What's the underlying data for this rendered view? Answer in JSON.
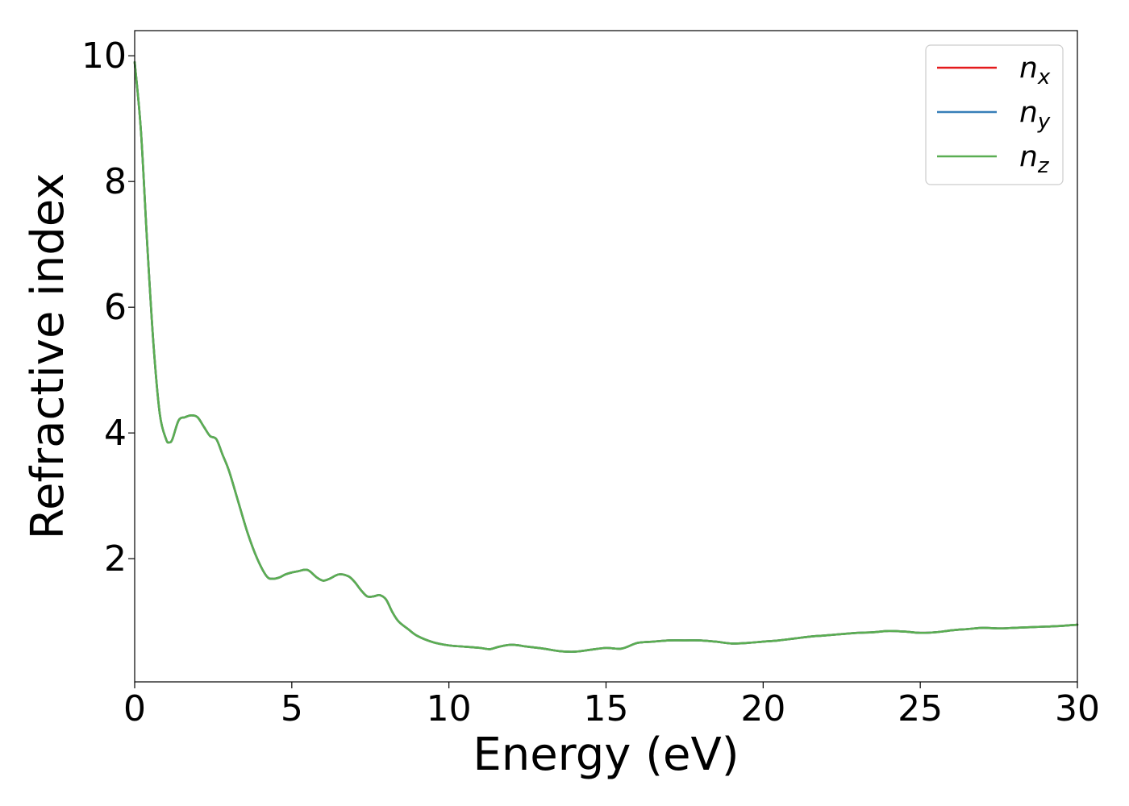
{
  "chart_data": {
    "type": "line",
    "xlabel": "Energy (eV)",
    "ylabel": "Refractive index",
    "xlim": [
      0,
      30
    ],
    "ylim": [
      0.04,
      10.4
    ],
    "xticks": [
      0,
      5,
      10,
      15,
      20,
      25,
      30
    ],
    "yticks": [
      2,
      4,
      6,
      8,
      10
    ],
    "grid": false,
    "legend_position": "top-right",
    "series": [
      {
        "name": "n_x",
        "label_base": "n",
        "label_sub": "x",
        "color": "#e41a1c",
        "x": [
          0,
          0.2,
          0.4,
          0.6,
          0.8,
          1.0,
          1.1,
          1.2,
          1.4,
          1.6,
          1.8,
          2.0,
          2.2,
          2.4,
          2.6,
          2.8,
          3.0,
          3.3,
          3.6,
          3.9,
          4.2,
          4.4,
          4.6,
          4.8,
          5.0,
          5.2,
          5.5,
          5.8,
          6.0,
          6.2,
          6.5,
          6.8,
          7.0,
          7.2,
          7.4,
          7.6,
          7.8,
          8.0,
          8.2,
          8.4,
          8.7,
          9.0,
          9.5,
          10.0,
          10.5,
          11.0,
          11.3,
          11.6,
          12.0,
          12.5,
          13.0,
          13.5,
          14.0,
          14.5,
          15.0,
          15.5,
          16.0,
          16.5,
          17.0,
          17.5,
          18.0,
          18.5,
          19.0,
          19.5,
          20.0,
          20.5,
          21.0,
          21.5,
          22.0,
          22.5,
          23.0,
          23.5,
          24.0,
          24.5,
          25.0,
          25.5,
          26.0,
          26.5,
          27.0,
          27.5,
          28.0,
          28.5,
          29.0,
          29.5,
          30.0
        ],
        "y": [
          9.9,
          8.8,
          7.0,
          5.4,
          4.3,
          3.9,
          3.85,
          3.9,
          4.2,
          4.25,
          4.28,
          4.25,
          4.1,
          3.95,
          3.9,
          3.65,
          3.4,
          2.9,
          2.4,
          2.0,
          1.72,
          1.68,
          1.7,
          1.75,
          1.78,
          1.8,
          1.82,
          1.7,
          1.65,
          1.68,
          1.75,
          1.72,
          1.63,
          1.5,
          1.4,
          1.4,
          1.42,
          1.35,
          1.15,
          1.0,
          0.88,
          0.77,
          0.67,
          0.62,
          0.6,
          0.58,
          0.56,
          0.6,
          0.63,
          0.6,
          0.57,
          0.53,
          0.52,
          0.55,
          0.58,
          0.57,
          0.66,
          0.68,
          0.7,
          0.7,
          0.7,
          0.68,
          0.65,
          0.66,
          0.68,
          0.7,
          0.73,
          0.76,
          0.78,
          0.8,
          0.82,
          0.83,
          0.85,
          0.84,
          0.82,
          0.83,
          0.86,
          0.88,
          0.9,
          0.89,
          0.9,
          0.91,
          0.92,
          0.93,
          0.95
        ]
      },
      {
        "name": "n_y",
        "label_base": "n",
        "label_sub": "y",
        "color": "#377eb8",
        "x": [
          0,
          0.2,
          0.4,
          0.6,
          0.8,
          1.0,
          1.1,
          1.2,
          1.4,
          1.6,
          1.8,
          2.0,
          2.2,
          2.4,
          2.6,
          2.8,
          3.0,
          3.3,
          3.6,
          3.9,
          4.2,
          4.4,
          4.6,
          4.8,
          5.0,
          5.2,
          5.5,
          5.8,
          6.0,
          6.2,
          6.5,
          6.8,
          7.0,
          7.2,
          7.4,
          7.6,
          7.8,
          8.0,
          8.2,
          8.4,
          8.7,
          9.0,
          9.5,
          10.0,
          10.5,
          11.0,
          11.3,
          11.6,
          12.0,
          12.5,
          13.0,
          13.5,
          14.0,
          14.5,
          15.0,
          15.5,
          16.0,
          16.5,
          17.0,
          17.5,
          18.0,
          18.5,
          19.0,
          19.5,
          20.0,
          20.5,
          21.0,
          21.5,
          22.0,
          22.5,
          23.0,
          23.5,
          24.0,
          24.5,
          25.0,
          25.5,
          26.0,
          26.5,
          27.0,
          27.5,
          28.0,
          28.5,
          29.0,
          29.5,
          30.0
        ],
        "y": [
          9.9,
          8.8,
          7.0,
          5.4,
          4.3,
          3.9,
          3.85,
          3.9,
          4.2,
          4.25,
          4.28,
          4.25,
          4.1,
          3.95,
          3.9,
          3.65,
          3.4,
          2.9,
          2.4,
          2.0,
          1.72,
          1.68,
          1.7,
          1.75,
          1.78,
          1.8,
          1.82,
          1.7,
          1.65,
          1.68,
          1.75,
          1.72,
          1.63,
          1.5,
          1.4,
          1.4,
          1.42,
          1.35,
          1.15,
          1.0,
          0.88,
          0.77,
          0.67,
          0.62,
          0.6,
          0.58,
          0.56,
          0.6,
          0.63,
          0.6,
          0.57,
          0.53,
          0.52,
          0.55,
          0.58,
          0.57,
          0.66,
          0.68,
          0.7,
          0.7,
          0.7,
          0.68,
          0.65,
          0.66,
          0.68,
          0.7,
          0.73,
          0.76,
          0.78,
          0.8,
          0.82,
          0.83,
          0.85,
          0.84,
          0.82,
          0.83,
          0.86,
          0.88,
          0.9,
          0.89,
          0.9,
          0.91,
          0.92,
          0.93,
          0.95
        ]
      },
      {
        "name": "n_z",
        "label_base": "n",
        "label_sub": "z",
        "color": "#5aae52",
        "x": [
          0,
          0.2,
          0.4,
          0.6,
          0.8,
          1.0,
          1.1,
          1.2,
          1.4,
          1.6,
          1.8,
          2.0,
          2.2,
          2.4,
          2.6,
          2.8,
          3.0,
          3.3,
          3.6,
          3.9,
          4.2,
          4.4,
          4.6,
          4.8,
          5.0,
          5.2,
          5.5,
          5.8,
          6.0,
          6.2,
          6.5,
          6.8,
          7.0,
          7.2,
          7.4,
          7.6,
          7.8,
          8.0,
          8.2,
          8.4,
          8.7,
          9.0,
          9.5,
          10.0,
          10.5,
          11.0,
          11.3,
          11.6,
          12.0,
          12.5,
          13.0,
          13.5,
          14.0,
          14.5,
          15.0,
          15.5,
          16.0,
          16.5,
          17.0,
          17.5,
          18.0,
          18.5,
          19.0,
          19.5,
          20.0,
          20.5,
          21.0,
          21.5,
          22.0,
          22.5,
          23.0,
          23.5,
          24.0,
          24.5,
          25.0,
          25.5,
          26.0,
          26.5,
          27.0,
          27.5,
          28.0,
          28.5,
          29.0,
          29.5,
          30.0
        ],
        "y": [
          9.9,
          8.8,
          7.0,
          5.4,
          4.3,
          3.9,
          3.85,
          3.9,
          4.2,
          4.25,
          4.28,
          4.25,
          4.1,
          3.95,
          3.9,
          3.65,
          3.4,
          2.9,
          2.4,
          2.0,
          1.72,
          1.68,
          1.7,
          1.75,
          1.78,
          1.8,
          1.82,
          1.7,
          1.65,
          1.68,
          1.75,
          1.72,
          1.63,
          1.5,
          1.4,
          1.4,
          1.42,
          1.35,
          1.15,
          1.0,
          0.88,
          0.77,
          0.67,
          0.62,
          0.6,
          0.58,
          0.56,
          0.6,
          0.63,
          0.6,
          0.57,
          0.53,
          0.52,
          0.55,
          0.58,
          0.57,
          0.66,
          0.68,
          0.7,
          0.7,
          0.7,
          0.68,
          0.65,
          0.66,
          0.68,
          0.7,
          0.73,
          0.76,
          0.78,
          0.8,
          0.82,
          0.83,
          0.85,
          0.84,
          0.82,
          0.83,
          0.86,
          0.88,
          0.9,
          0.89,
          0.9,
          0.91,
          0.92,
          0.93,
          0.95
        ]
      }
    ]
  }
}
